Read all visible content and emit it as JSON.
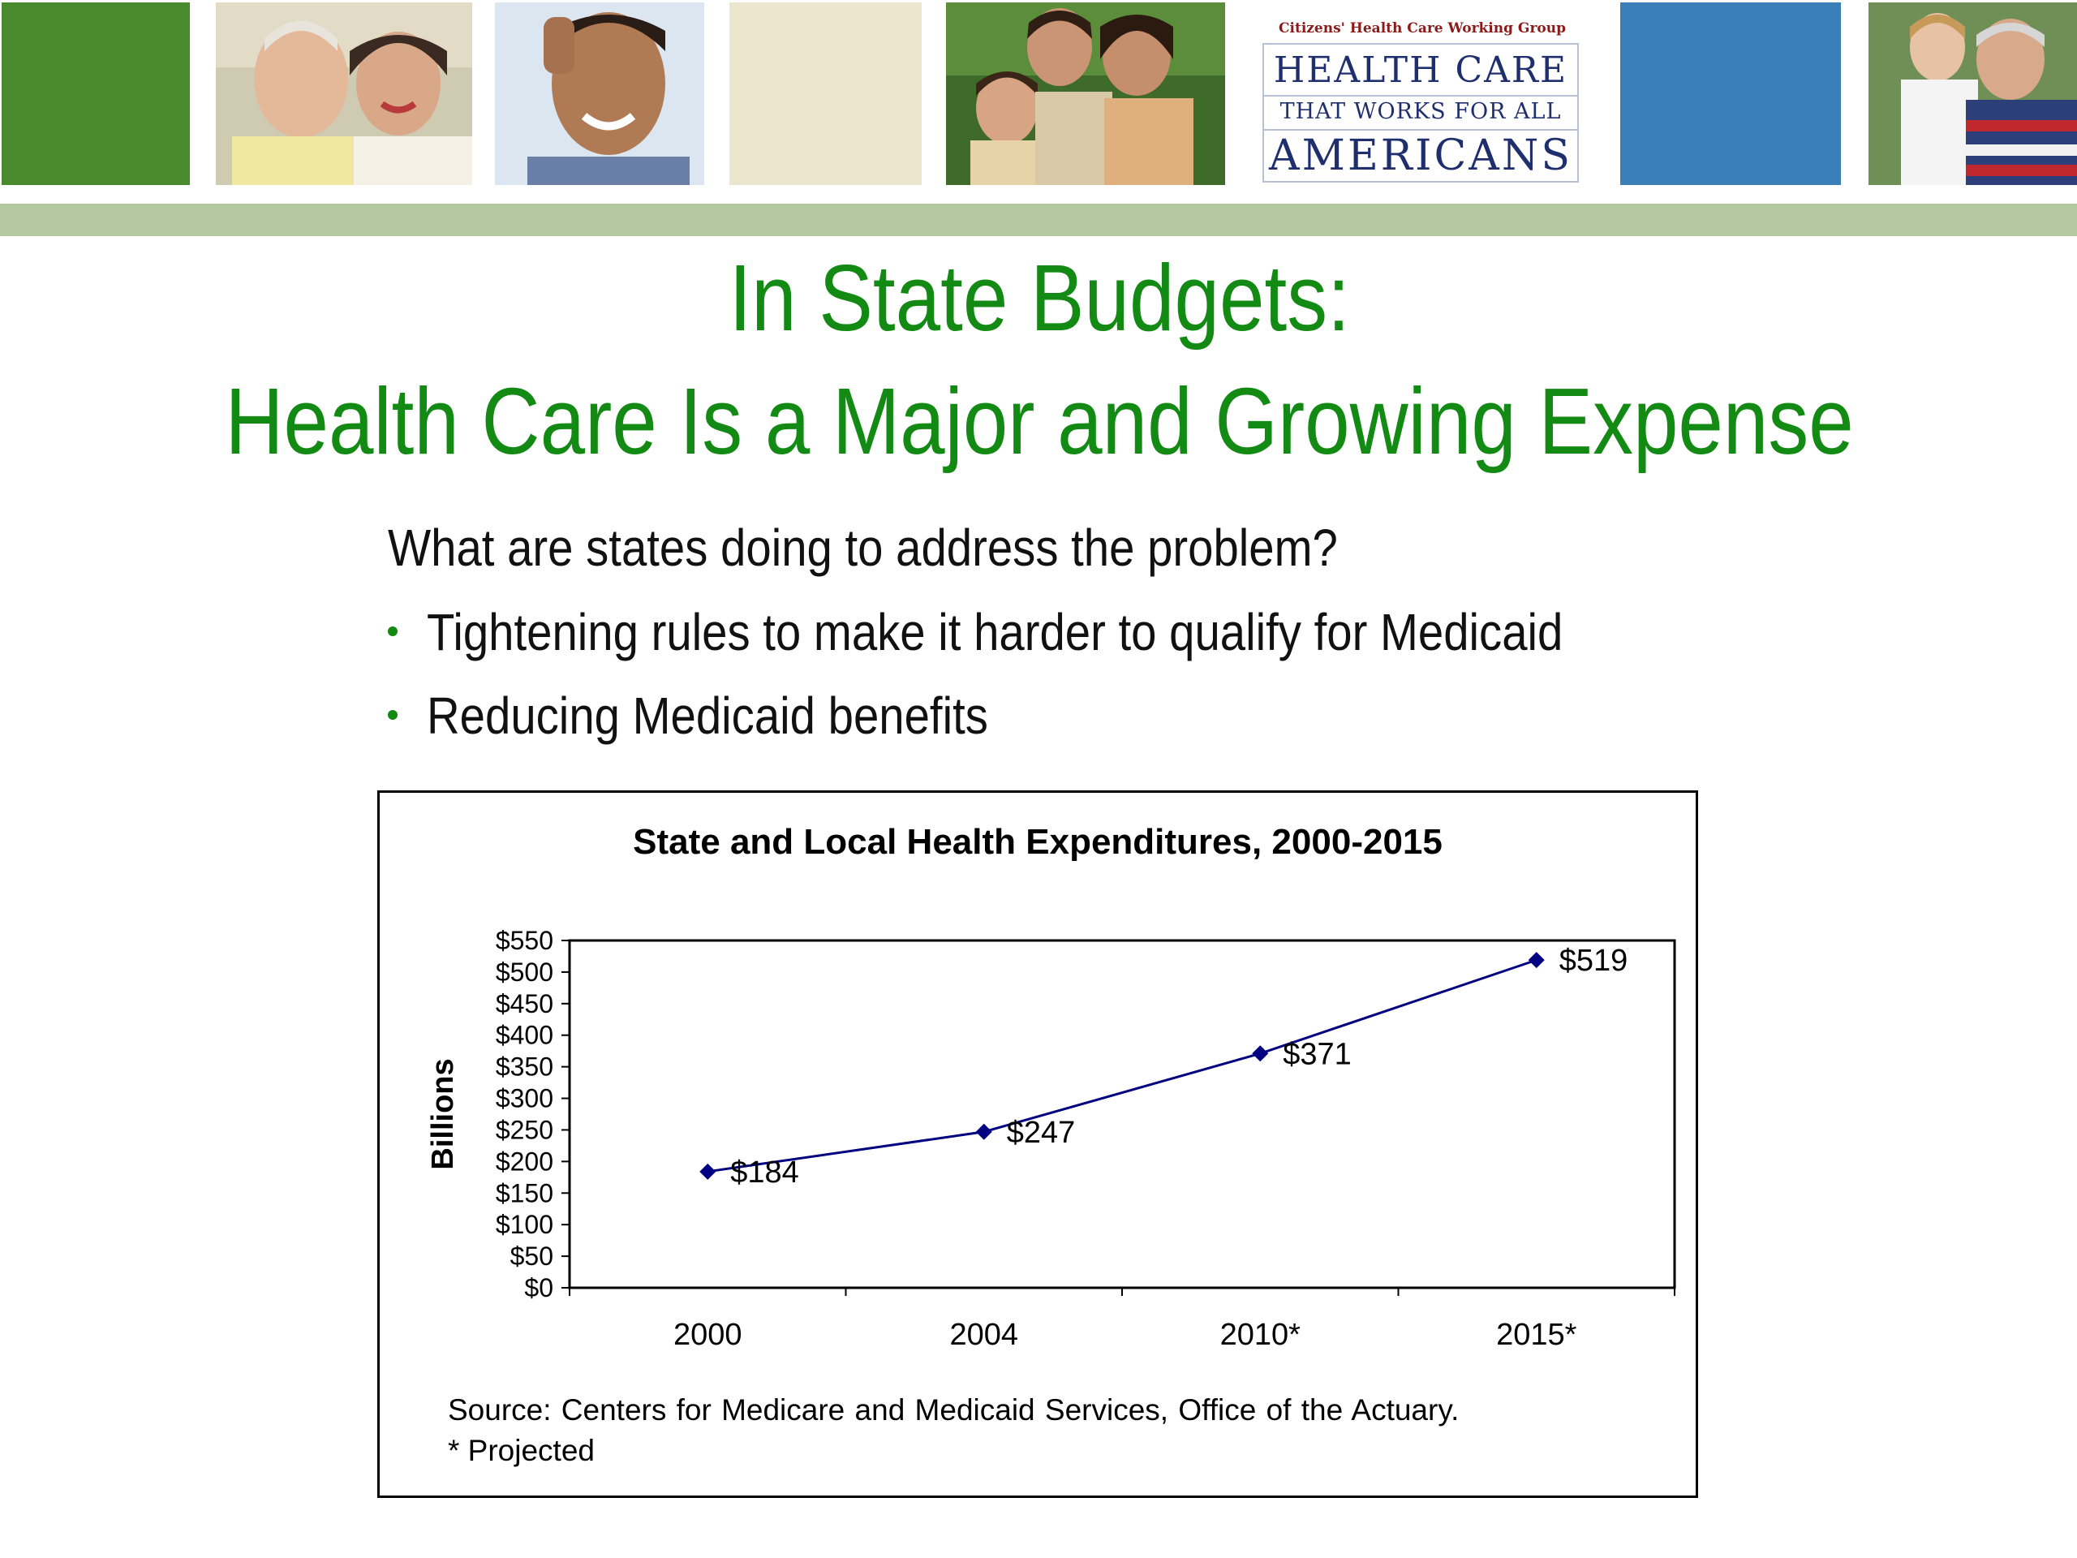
{
  "banner": {
    "logo_top": "Citizens' Health Care Working Group",
    "logo_line1": "HEALTH CARE",
    "logo_line2": "THAT WORKS FOR ALL",
    "logo_line3": "AMERICANS",
    "colors": {
      "green_tile": "#4a8a2f",
      "blue_tile": "#3a7fb8",
      "beige_tile": "#ece6cf",
      "bar": "#b5c9a0"
    }
  },
  "slide": {
    "title_line1": "In State Budgets:",
    "title_line2": "Health Care Is a Major and Growing Expense",
    "question": "What are states doing to address the problem?",
    "bullets": [
      "Tightening rules to make it harder to qualify for Medicaid",
      "Reducing Medicaid benefits"
    ],
    "accent_color": "#138a13"
  },
  "chart_data": {
    "type": "line",
    "title": "State and Local Health Expenditures, 2000-2015",
    "ylabel": "Billions",
    "xlabel": "",
    "categories": [
      "2000",
      "2004",
      "2010*",
      "2015*"
    ],
    "series": [
      {
        "values": [
          184,
          247,
          371,
          519
        ],
        "labels": [
          "$184",
          "$247",
          "$371",
          "$519"
        ],
        "color": "#000080"
      }
    ],
    "ylim": [
      0,
      550
    ],
    "yticks": [
      "$0",
      "$50",
      "$100",
      "$150",
      "$200",
      "$250",
      "$300",
      "$350",
      "$400",
      "$450",
      "$500",
      "$550"
    ],
    "grid": false,
    "legend": "none",
    "source": "Source: Centers for Medicare and Medicaid Services, Office of the Actuary.",
    "note": "* Projected"
  }
}
